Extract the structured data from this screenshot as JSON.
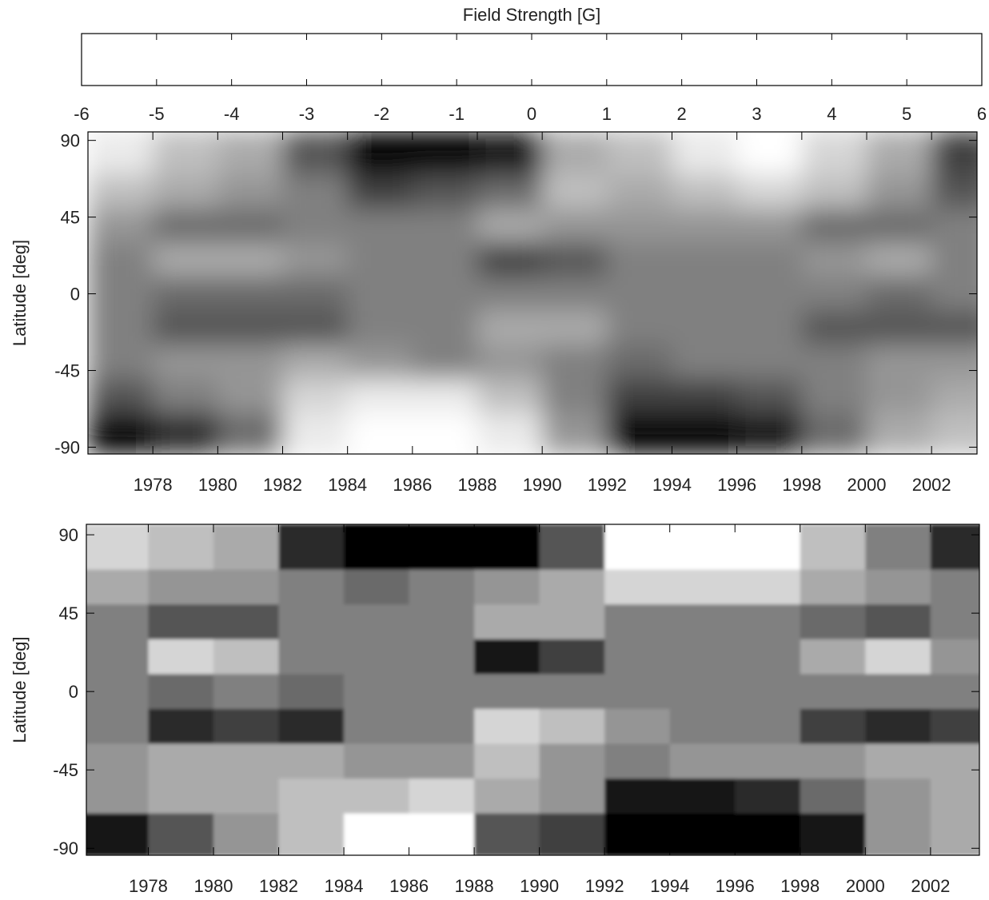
{
  "chart_data": [
    {
      "type": "colorbar",
      "title": "Field Strength [G]",
      "xlim": [
        -6,
        6
      ],
      "xticks": [
        -6,
        -5,
        -4,
        -3,
        -2,
        -1,
        0,
        1,
        2,
        3,
        4,
        5,
        6
      ],
      "colormap": [
        "#000000",
        "#ffffff"
      ]
    },
    {
      "type": "heatmap",
      "ylabel": "Latitude [deg]",
      "xlim": [
        1976,
        2003.4
      ],
      "ylim": [
        -94,
        95
      ],
      "xticks": [
        1978,
        1980,
        1982,
        1984,
        1986,
        1988,
        1990,
        1992,
        1994,
        1996,
        1998,
        2000,
        2002
      ],
      "yticks": [
        -90,
        -45,
        0,
        45,
        90
      ],
      "x_bins": [
        1976,
        1978,
        1980,
        1982,
        1984,
        1986,
        1988,
        1990,
        1992,
        1994,
        1996,
        1998,
        2000,
        2002,
        2004
      ],
      "y_bins": [
        96,
        70,
        50,
        30,
        10,
        -10,
        -30,
        -50,
        -70,
        -94
      ],
      "smooth": true,
      "values": [
        [
          5,
          3,
          2,
          -2,
          -6,
          -6,
          -5,
          2,
          3,
          5,
          6,
          4,
          2,
          -3
        ],
        [
          3,
          2,
          1,
          0,
          -3,
          -2,
          -1,
          3,
          2,
          3,
          4,
          3,
          1,
          -2
        ],
        [
          1,
          -1,
          -1,
          0,
          0,
          0,
          2,
          1,
          1,
          1,
          1,
          -1,
          -1,
          0
        ],
        [
          0,
          2,
          2,
          1,
          0,
          0,
          -3,
          -2,
          0,
          0,
          0,
          1,
          2,
          0
        ],
        [
          0,
          -1,
          -1,
          -1,
          0,
          0,
          0,
          0,
          0,
          0,
          0,
          0,
          -1,
          0
        ],
        [
          0,
          -2,
          -2,
          -2,
          0,
          0,
          2,
          2,
          0,
          0,
          0,
          -2,
          -2,
          -2
        ],
        [
          0,
          1,
          1,
          2,
          1,
          0,
          1,
          0,
          -1,
          0,
          0,
          0,
          1,
          1
        ],
        [
          -2,
          0,
          1,
          4,
          5,
          5,
          3,
          0,
          -3,
          -3,
          -2,
          0,
          1,
          2
        ],
        [
          -6,
          -4,
          -1,
          5,
          6,
          6,
          5,
          1,
          -6,
          -6,
          -5,
          -1,
          2,
          3
        ]
      ]
    },
    {
      "type": "heatmap",
      "ylabel": "Latitude [deg]",
      "xlim": [
        1976.1,
        2003.5
      ],
      "ylim": [
        -94,
        96
      ],
      "xticks": [
        1978,
        1980,
        1982,
        1984,
        1986,
        1988,
        1990,
        1992,
        1994,
        1996,
        1998,
        2000,
        2002
      ],
      "yticks": [
        -90,
        -45,
        0,
        45,
        90
      ],
      "x_bins": [
        1976,
        1978,
        1980,
        1982,
        1984,
        1986,
        1988,
        1990,
        1992,
        1994,
        1996,
        1998,
        2000,
        2002,
        2004
      ],
      "y_bins": [
        96,
        70,
        50,
        30,
        10,
        -10,
        -30,
        -50,
        -70,
        -94
      ],
      "smooth": false,
      "values": [
        [
          4,
          3,
          2,
          -4,
          -6,
          -6,
          -6,
          -2,
          6,
          6,
          6,
          3,
          0,
          -4
        ],
        [
          2,
          1,
          1,
          0,
          -1,
          0,
          1,
          2,
          4,
          4,
          4,
          2,
          1,
          0
        ],
        [
          0,
          -2,
          -2,
          0,
          0,
          0,
          2,
          2,
          0,
          0,
          0,
          -1,
          -2,
          0
        ],
        [
          0,
          4,
          3,
          0,
          0,
          0,
          -5,
          -3,
          0,
          0,
          0,
          2,
          4,
          1
        ],
        [
          0,
          -1,
          0,
          -1,
          0,
          0,
          0,
          0,
          0,
          0,
          0,
          0,
          0,
          0
        ],
        [
          0,
          -4,
          -3,
          -4,
          0,
          0,
          4,
          3,
          1,
          0,
          0,
          -3,
          -4,
          -3
        ],
        [
          1,
          2,
          2,
          2,
          1,
          1,
          3,
          1,
          0,
          1,
          1,
          1,
          2,
          2
        ],
        [
          1,
          2,
          2,
          3,
          3,
          4,
          2,
          1,
          -5,
          -5,
          -4,
          -1,
          1,
          2
        ],
        [
          -5,
          -2,
          1,
          3,
          6,
          6,
          -2,
          -3,
          -6,
          -6,
          -6,
          -5,
          1,
          2
        ]
      ]
    }
  ]
}
